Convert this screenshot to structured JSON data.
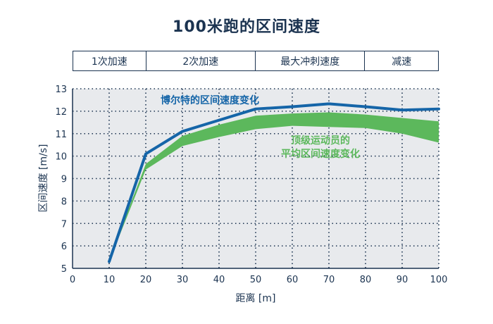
{
  "title": "100米跑的区间速度",
  "phases": [
    {
      "label": "1次加速",
      "start": 0,
      "end": 20
    },
    {
      "label": "2次加速",
      "start": 20,
      "end": 50
    },
    {
      "label": "最大冲刺速度",
      "start": 50,
      "end": 80
    },
    {
      "label": "减速",
      "start": 80,
      "end": 100
    }
  ],
  "chart_data": {
    "type": "line",
    "title": "100米跑的区间速度",
    "xlabel": "距离 [m]",
    "ylabel": "区间速度 [m/s]",
    "xlim": [
      0,
      100
    ],
    "ylim": [
      5,
      13
    ],
    "xticks": [
      0,
      10,
      20,
      30,
      40,
      50,
      60,
      70,
      80,
      90,
      100
    ],
    "yticks": [
      5,
      6,
      7,
      8,
      9,
      10,
      11,
      12,
      13
    ],
    "grid": true,
    "series": [
      {
        "name": "博尔特的区间速度变化",
        "type": "line",
        "color": "#1565a8",
        "x": [
          10,
          20,
          30,
          40,
          50,
          60,
          70,
          80,
          90,
          100
        ],
        "y": [
          5.3,
          10.1,
          11.1,
          11.6,
          12.1,
          12.2,
          12.33,
          12.2,
          12.05,
          12.1
        ]
      },
      {
        "name": "顶级运动员的平均区间速度变化",
        "type": "band",
        "color": "#5cb85c",
        "x": [
          10,
          20,
          30,
          40,
          50,
          60,
          70,
          80,
          90,
          100
        ],
        "upper": [
          5.4,
          9.65,
          10.9,
          11.4,
          11.8,
          11.9,
          11.95,
          11.85,
          11.7,
          11.55
        ],
        "lower": [
          5.3,
          9.4,
          10.45,
          10.85,
          11.2,
          11.35,
          11.3,
          11.25,
          11.0,
          10.6
        ]
      }
    ]
  },
  "annotations": {
    "bolt_label": "博尔特的区间速度变化",
    "avg_label_line1": "顶级运动员的",
    "avg_label_line2": "平均区间速度变化"
  }
}
